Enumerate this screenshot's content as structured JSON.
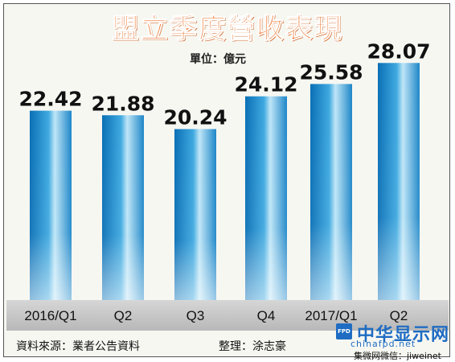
{
  "header": {
    "title": "盟立季度營收表現",
    "unit": "單位：億元"
  },
  "footer": {
    "source": "資料來源：業者公告資料",
    "editor": "整理：涂志豪"
  },
  "watermark": {
    "logo": "FPD",
    "name": "中华显示网",
    "url": "chinafpd.net",
    "wechat": "集微网微信：jiweinet"
  },
  "colors": {
    "title": "#ee6a1c",
    "bar_dark": "#0a6fb5",
    "bar_light": "#bfe6f7",
    "category_band": "#c4c4c4"
  },
  "chart_data": {
    "type": "bar",
    "categories": [
      "2016/Q1",
      "Q2",
      "Q3",
      "Q4",
      "2017/Q1",
      "Q2"
    ],
    "values": [
      22.42,
      21.88,
      20.24,
      24.12,
      25.58,
      28.07
    ],
    "value_labels": [
      "22.42",
      "21.88",
      "20.24",
      "24.12",
      "25.58",
      "28.07"
    ],
    "title": "盟立季度營收表現",
    "unit": "單位：億元",
    "ylim": [
      0,
      30
    ],
    "grid": false,
    "legend": false
  }
}
